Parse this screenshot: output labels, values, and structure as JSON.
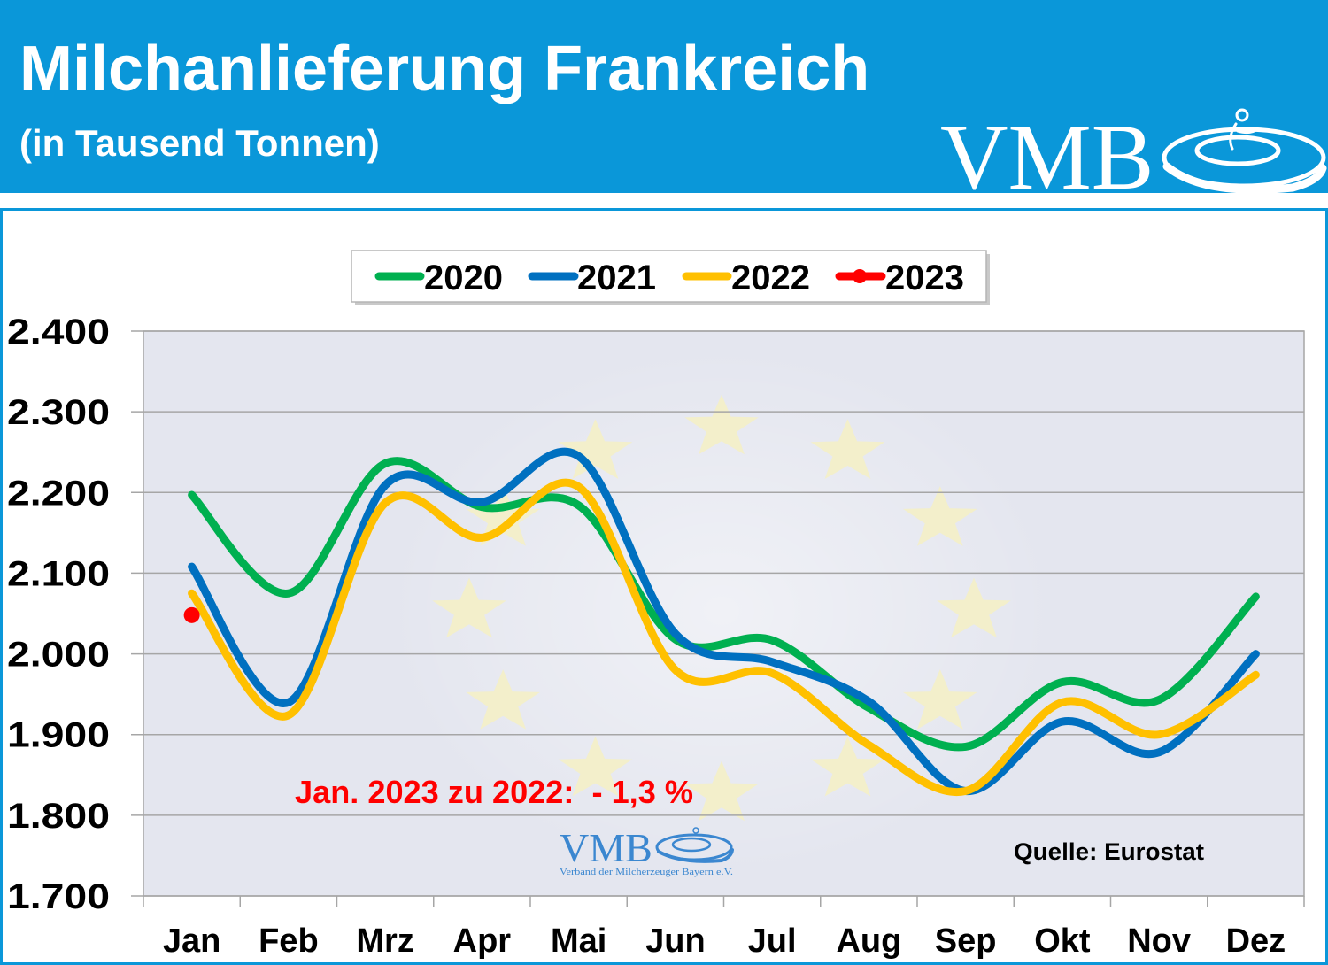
{
  "chart_data": {
    "type": "line",
    "title": "Milchanlieferung Frankreich",
    "subtitle": "(in Tausend Tonnen)",
    "categories": [
      "Jan",
      "Feb",
      "Mrz",
      "Apr",
      "Mai",
      "Jun",
      "Jul",
      "Aug",
      "Sep",
      "Okt",
      "Nov",
      "Dez"
    ],
    "ylim": [
      1700,
      2400
    ],
    "yticks": [
      1700,
      1800,
      1900,
      2000,
      2100,
      2200,
      2300,
      2400
    ],
    "yticklabels": [
      "1.700",
      "1.800",
      "1.900",
      "2.000",
      "2.100",
      "2.200",
      "2.300",
      "2.400"
    ],
    "grid": true,
    "legend": "top-center",
    "series": [
      {
        "name": "2020",
        "color": "#00b050",
        "values": [
          2197,
          2075,
          2236,
          2182,
          2184,
          2018,
          2017,
          1933,
          1885,
          1965,
          1943,
          2071
        ]
      },
      {
        "name": "2021",
        "color": "#0070c0",
        "values": [
          2108,
          1940,
          2209,
          2188,
          2245,
          2025,
          1990,
          1941,
          1830,
          1916,
          1878,
          2000
        ]
      },
      {
        "name": "2022",
        "color": "#ffc000",
        "values": [
          2075,
          1924,
          2187,
          2144,
          2207,
          1980,
          1976,
          1887,
          1830,
          1940,
          1900,
          1974
        ]
      },
      {
        "name": "2023",
        "color": "#ff0000",
        "marker": "circle",
        "values": [
          2048,
          null,
          null,
          null,
          null,
          null,
          null,
          null,
          null,
          null,
          null,
          null
        ]
      }
    ],
    "annotation": {
      "text": "Jan. 2023 zu 2022:  - 1,3 %",
      "color": "#ff0000"
    },
    "source": "Quelle: Eurostat"
  },
  "logo": {
    "text": "VMB",
    "tagline": "Verband der Milcherzeuger Bayern e.V."
  },
  "colors": {
    "header": "#0a97d9",
    "frame": "#0a97d9",
    "plot_background": "#e4e6ef",
    "logo_watermark": "#3b87d0"
  }
}
